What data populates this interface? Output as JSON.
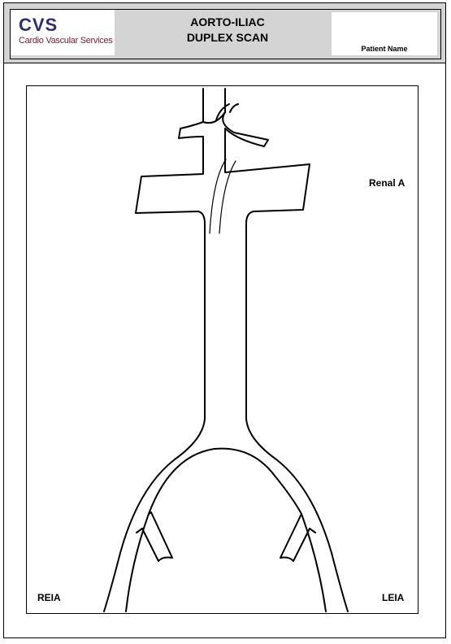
{
  "header": {
    "logo_abbr": "CVS",
    "logo_name": "Cardio Vascular Services",
    "title_line1": "AORTO-ILIAC",
    "title_line2": "DUPLEX SCAN",
    "patient_label": "Patient Name"
  },
  "diagram": {
    "renal_label": "Renal A",
    "right_iliac_label": "REIA",
    "left_iliac_label": "LEIA"
  },
  "colors": {
    "header_bg": "#d4d4d4",
    "logo_blue": "#2c2f6e",
    "logo_red": "#7a2030"
  }
}
